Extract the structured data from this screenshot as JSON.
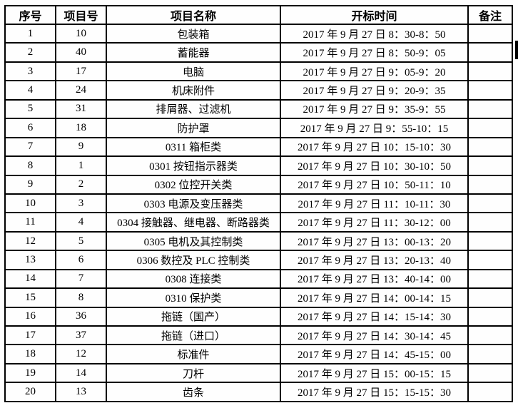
{
  "table": {
    "columns": [
      {
        "key": "index",
        "label": "序号"
      },
      {
        "key": "item_no",
        "label": "项目号"
      },
      {
        "key": "name",
        "label": "项目名称"
      },
      {
        "key": "time",
        "label": "开标时间"
      },
      {
        "key": "remark",
        "label": "备注"
      }
    ],
    "rows": [
      [
        "1",
        "10",
        "包装箱",
        "2017 年 9 月 27 日 8：30-8：50",
        ""
      ],
      [
        "2",
        "40",
        "蓄能器",
        "2017 年 9 月 27 日 8：50-9：05",
        ""
      ],
      [
        "3",
        "17",
        "电脑",
        "2017 年 9 月 27 日 9：05-9：20",
        ""
      ],
      [
        "4",
        "24",
        "机床附件",
        "2017 年 9 月 27 日 9：20-9：35",
        ""
      ],
      [
        "5",
        "31",
        "排屑器、过滤机",
        "2017 年 9 月 27 日 9：35-9：55",
        ""
      ],
      [
        "6",
        "18",
        "防护罩",
        "2017 年 9 月 27 日 9：55-10：15",
        ""
      ],
      [
        "7",
        "9",
        "0311 箱柜类",
        "2017 年 9 月 27 日 10：15-10：30",
        ""
      ],
      [
        "8",
        "1",
        "0301 按钮指示器类",
        "2017 年 9 月 27 日 10：30-10：50",
        ""
      ],
      [
        "9",
        "2",
        "0302 位控开关类",
        "2017 年 9 月 27 日 10：50-11：10",
        ""
      ],
      [
        "10",
        "3",
        "0303 电源及变压器类",
        "2017 年 9 月 27 日 11：10-11：30",
        ""
      ],
      [
        "11",
        "4",
        "0304 接触器、继电器、断路器类",
        "2017 年 9 月 27 日 11：30-12：00",
        ""
      ],
      [
        "12",
        "5",
        "0305 电机及其控制类",
        "2017 年 9 月 27 日 13：00-13：20",
        ""
      ],
      [
        "13",
        "6",
        "0306 数控及 PLC 控制类",
        "2017 年 9 月 27 日 13：20-13：40",
        ""
      ],
      [
        "14",
        "7",
        "0308 连接类",
        "2017 年 9 月 27 日 13：40-14：00",
        ""
      ],
      [
        "15",
        "8",
        "0310 保护类",
        "2017 年 9 月 27 日 14：00-14：15",
        ""
      ],
      [
        "16",
        "36",
        "拖链（国产）",
        "2017 年 9 月 27 日 14：15-14：30",
        ""
      ],
      [
        "17",
        "37",
        "拖链（进口）",
        "2017 年 9 月 27 日 14：30-14：45",
        ""
      ],
      [
        "18",
        "12",
        "标准件",
        "2017 年 9 月 27 日 14：45-15：00",
        ""
      ],
      [
        "19",
        "14",
        "刀杆",
        "2017 年 9 月 27 日 15：00-15：15",
        ""
      ],
      [
        "20",
        "13",
        "齿条",
        "2017 年 9 月 27 日 15：15-15：30",
        ""
      ]
    ]
  },
  "colors": {
    "border": "#000000",
    "text": "#000000",
    "background": "#fefefe",
    "edge_mark": "#000000"
  }
}
